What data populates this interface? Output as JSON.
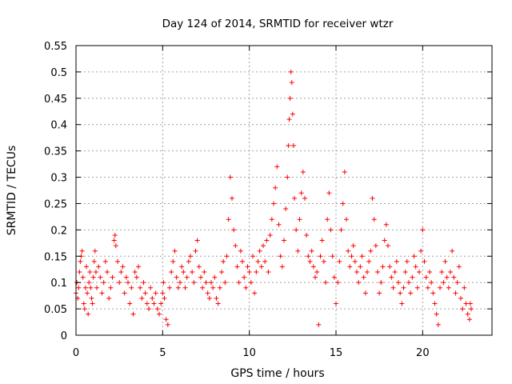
{
  "chart_data": {
    "type": "scatter",
    "title": "Day 124 of 2014, SRMTID for receiver wtzr",
    "xlabel": "GPS time / hours",
    "ylabel": "SRMTID / TECUs",
    "xlim": [
      0,
      24
    ],
    "ylim": [
      0,
      0.55
    ],
    "xticks": [
      0,
      5,
      10,
      15,
      20
    ],
    "xtick_labels": [
      "0",
      "5",
      "10",
      "15",
      "20"
    ],
    "yticks": [
      0,
      0.05,
      0.1,
      0.15,
      0.2,
      0.25,
      0.3,
      0.35,
      0.4,
      0.45,
      0.5,
      0.55
    ],
    "ytick_labels": [
      "0",
      "0.05",
      "0.1",
      "0.15",
      "0.2",
      "0.25",
      "0.3",
      "0.35",
      "0.4",
      "0.45",
      "0.5",
      "0.55"
    ],
    "grid": true,
    "marker": "+",
    "color": "#ff0000",
    "series": [
      {
        "name": "SRMTID",
        "points": [
          [
            0.0,
            0.08
          ],
          [
            0.05,
            0.1
          ],
          [
            0.1,
            0.07
          ],
          [
            0.15,
            0.09
          ],
          [
            0.2,
            0.12
          ],
          [
            0.25,
            0.14
          ],
          [
            0.3,
            0.15
          ],
          [
            0.35,
            0.16
          ],
          [
            0.4,
            0.11
          ],
          [
            0.45,
            0.06
          ],
          [
            0.5,
            0.05
          ],
          [
            0.55,
            0.09
          ],
          [
            0.6,
            0.13
          ],
          [
            0.65,
            0.08
          ],
          [
            0.7,
            0.04
          ],
          [
            0.75,
            0.1
          ],
          [
            0.8,
            0.12
          ],
          [
            0.85,
            0.09
          ],
          [
            0.9,
            0.07
          ],
          [
            0.95,
            0.06
          ],
          [
            1.0,
            0.11
          ],
          [
            1.05,
            0.14
          ],
          [
            1.1,
            0.16
          ],
          [
            1.15,
            0.12
          ],
          [
            1.2,
            0.09
          ],
          [
            1.3,
            0.13
          ],
          [
            1.4,
            0.11
          ],
          [
            1.5,
            0.08
          ],
          [
            1.6,
            0.1
          ],
          [
            1.7,
            0.14
          ],
          [
            1.8,
            0.12
          ],
          [
            1.9,
            0.07
          ],
          [
            2.0,
            0.09
          ],
          [
            2.1,
            0.11
          ],
          [
            2.2,
            0.18
          ],
          [
            2.25,
            0.19
          ],
          [
            2.3,
            0.17
          ],
          [
            2.4,
            0.14
          ],
          [
            2.5,
            0.1
          ],
          [
            2.6,
            0.12
          ],
          [
            2.7,
            0.13
          ],
          [
            2.8,
            0.08
          ],
          [
            2.9,
            0.11
          ],
          [
            3.0,
            0.1
          ],
          [
            3.1,
            0.06
          ],
          [
            3.2,
            0.09
          ],
          [
            3.3,
            0.04
          ],
          [
            3.4,
            0.12
          ],
          [
            3.5,
            0.11
          ],
          [
            3.6,
            0.13
          ],
          [
            3.7,
            0.09
          ],
          [
            3.8,
            0.07
          ],
          [
            3.9,
            0.1
          ],
          [
            4.0,
            0.08
          ],
          [
            4.1,
            0.06
          ],
          [
            4.2,
            0.05
          ],
          [
            4.3,
            0.09
          ],
          [
            4.4,
            0.07
          ],
          [
            4.5,
            0.06
          ],
          [
            4.6,
            0.08
          ],
          [
            4.7,
            0.05
          ],
          [
            4.8,
            0.04
          ],
          [
            4.9,
            0.06
          ],
          [
            5.0,
            0.08
          ],
          [
            5.05,
            0.1
          ],
          [
            5.1,
            0.07
          ],
          [
            5.2,
            0.03
          ],
          [
            5.3,
            0.02
          ],
          [
            5.4,
            0.09
          ],
          [
            5.5,
            0.12
          ],
          [
            5.6,
            0.14
          ],
          [
            5.7,
            0.16
          ],
          [
            5.8,
            0.11
          ],
          [
            5.9,
            0.09
          ],
          [
            6.0,
            0.1
          ],
          [
            6.1,
            0.13
          ],
          [
            6.2,
            0.12
          ],
          [
            6.3,
            0.09
          ],
          [
            6.4,
            0.11
          ],
          [
            6.5,
            0.14
          ],
          [
            6.6,
            0.15
          ],
          [
            6.7,
            0.12
          ],
          [
            6.8,
            0.1
          ],
          [
            6.9,
            0.16
          ],
          [
            7.0,
            0.18
          ],
          [
            7.1,
            0.13
          ],
          [
            7.2,
            0.11
          ],
          [
            7.3,
            0.09
          ],
          [
            7.4,
            0.12
          ],
          [
            7.5,
            0.1
          ],
          [
            7.6,
            0.08
          ],
          [
            7.7,
            0.07
          ],
          [
            7.8,
            0.1
          ],
          [
            7.9,
            0.09
          ],
          [
            8.0,
            0.11
          ],
          [
            8.1,
            0.07
          ],
          [
            8.2,
            0.06
          ],
          [
            8.3,
            0.09
          ],
          [
            8.4,
            0.12
          ],
          [
            8.5,
            0.14
          ],
          [
            8.6,
            0.1
          ],
          [
            8.7,
            0.15
          ],
          [
            8.8,
            0.22
          ],
          [
            8.9,
            0.3
          ],
          [
            9.0,
            0.26
          ],
          [
            9.1,
            0.2
          ],
          [
            9.2,
            0.17
          ],
          [
            9.3,
            0.13
          ],
          [
            9.4,
            0.1
          ],
          [
            9.5,
            0.16
          ],
          [
            9.6,
            0.14
          ],
          [
            9.7,
            0.11
          ],
          [
            9.8,
            0.09
          ],
          [
            9.9,
            0.13
          ],
          [
            10.0,
            0.12
          ],
          [
            10.1,
            0.1
          ],
          [
            10.2,
            0.15
          ],
          [
            10.3,
            0.08
          ],
          [
            10.4,
            0.12
          ],
          [
            10.5,
            0.14
          ],
          [
            10.6,
            0.16
          ],
          [
            10.7,
            0.13
          ],
          [
            10.8,
            0.17
          ],
          [
            10.9,
            0.14
          ],
          [
            11.0,
            0.18
          ],
          [
            11.1,
            0.12
          ],
          [
            11.2,
            0.19
          ],
          [
            11.3,
            0.22
          ],
          [
            11.4,
            0.25
          ],
          [
            11.5,
            0.28
          ],
          [
            11.6,
            0.32
          ],
          [
            11.7,
            0.21
          ],
          [
            11.8,
            0.15
          ],
          [
            11.9,
            0.13
          ],
          [
            12.0,
            0.18
          ],
          [
            12.1,
            0.24
          ],
          [
            12.2,
            0.3
          ],
          [
            12.25,
            0.36
          ],
          [
            12.3,
            0.41
          ],
          [
            12.35,
            0.45
          ],
          [
            12.4,
            0.5
          ],
          [
            12.45,
            0.48
          ],
          [
            12.5,
            0.42
          ],
          [
            12.55,
            0.36
          ],
          [
            12.6,
            0.26
          ],
          [
            12.7,
            0.2
          ],
          [
            12.8,
            0.16
          ],
          [
            12.9,
            0.22
          ],
          [
            13.0,
            0.27
          ],
          [
            13.1,
            0.31
          ],
          [
            13.2,
            0.26
          ],
          [
            13.3,
            0.19
          ],
          [
            13.4,
            0.15
          ],
          [
            13.5,
            0.14
          ],
          [
            13.6,
            0.16
          ],
          [
            13.7,
            0.13
          ],
          [
            13.8,
            0.11
          ],
          [
            13.9,
            0.12
          ],
          [
            14.0,
            0.02
          ],
          [
            14.1,
            0.15
          ],
          [
            14.2,
            0.18
          ],
          [
            14.3,
            0.14
          ],
          [
            14.4,
            0.1
          ],
          [
            14.5,
            0.22
          ],
          [
            14.6,
            0.27
          ],
          [
            14.7,
            0.2
          ],
          [
            14.8,
            0.15
          ],
          [
            14.9,
            0.11
          ],
          [
            15.0,
            0.06
          ],
          [
            15.1,
            0.1
          ],
          [
            15.2,
            0.14
          ],
          [
            15.3,
            0.2
          ],
          [
            15.4,
            0.25
          ],
          [
            15.5,
            0.31
          ],
          [
            15.6,
            0.22
          ],
          [
            15.7,
            0.16
          ],
          [
            15.8,
            0.13
          ],
          [
            15.9,
            0.15
          ],
          [
            16.0,
            0.17
          ],
          [
            16.1,
            0.14
          ],
          [
            16.2,
            0.12
          ],
          [
            16.3,
            0.1
          ],
          [
            16.4,
            0.13
          ],
          [
            16.5,
            0.15
          ],
          [
            16.6,
            0.11
          ],
          [
            16.7,
            0.08
          ],
          [
            16.8,
            0.12
          ],
          [
            16.9,
            0.14
          ],
          [
            17.0,
            0.16
          ],
          [
            17.1,
            0.26
          ],
          [
            17.2,
            0.22
          ],
          [
            17.3,
            0.17
          ],
          [
            17.4,
            0.12
          ],
          [
            17.5,
            0.08
          ],
          [
            17.6,
            0.1
          ],
          [
            17.7,
            0.13
          ],
          [
            17.8,
            0.18
          ],
          [
            17.9,
            0.21
          ],
          [
            18.0,
            0.17
          ],
          [
            18.1,
            0.13
          ],
          [
            18.2,
            0.11
          ],
          [
            18.3,
            0.09
          ],
          [
            18.4,
            0.12
          ],
          [
            18.5,
            0.14
          ],
          [
            18.6,
            0.1
          ],
          [
            18.7,
            0.08
          ],
          [
            18.8,
            0.06
          ],
          [
            18.9,
            0.09
          ],
          [
            19.0,
            0.12
          ],
          [
            19.1,
            0.14
          ],
          [
            19.2,
            0.1
          ],
          [
            19.3,
            0.08
          ],
          [
            19.4,
            0.11
          ],
          [
            19.5,
            0.15
          ],
          [
            19.6,
            0.13
          ],
          [
            19.7,
            0.09
          ],
          [
            19.8,
            0.12
          ],
          [
            19.9,
            0.16
          ],
          [
            20.0,
            0.2
          ],
          [
            20.1,
            0.14
          ],
          [
            20.2,
            0.11
          ],
          [
            20.3,
            0.09
          ],
          [
            20.4,
            0.12
          ],
          [
            20.5,
            0.1
          ],
          [
            20.6,
            0.08
          ],
          [
            20.7,
            0.06
          ],
          [
            20.8,
            0.04
          ],
          [
            20.9,
            0.02
          ],
          [
            21.0,
            0.09
          ],
          [
            21.1,
            0.12
          ],
          [
            21.2,
            0.1
          ],
          [
            21.3,
            0.14
          ],
          [
            21.4,
            0.11
          ],
          [
            21.5,
            0.09
          ],
          [
            21.6,
            0.12
          ],
          [
            21.7,
            0.16
          ],
          [
            21.8,
            0.11
          ],
          [
            21.9,
            0.08
          ],
          [
            22.0,
            0.1
          ],
          [
            22.1,
            0.13
          ],
          [
            22.2,
            0.07
          ],
          [
            22.3,
            0.05
          ],
          [
            22.4,
            0.09
          ],
          [
            22.5,
            0.06
          ],
          [
            22.6,
            0.04
          ],
          [
            22.7,
            0.03
          ],
          [
            22.75,
            0.06
          ],
          [
            22.8,
            0.05
          ]
        ]
      }
    ]
  }
}
